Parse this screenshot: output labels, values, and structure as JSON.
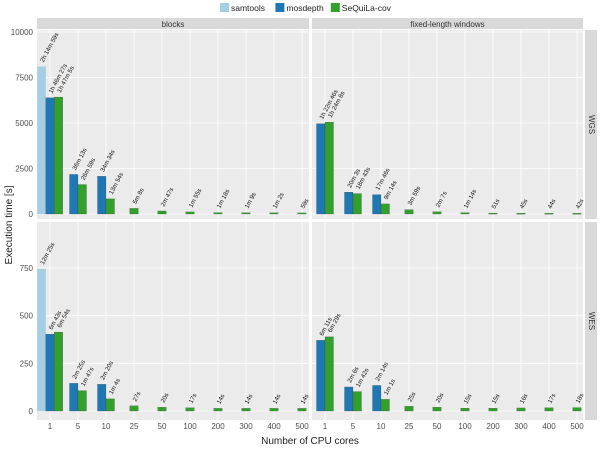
{
  "chart_data": {
    "type": "bar",
    "xlabel": "Number of CPU cores",
    "ylabel": "Execution time [s]",
    "categories": [
      "1",
      "5",
      "10",
      "25",
      "50",
      "100",
      "200",
      "300",
      "400",
      "500"
    ],
    "legend": {
      "position": "top",
      "entries": [
        {
          "name": "samtools",
          "color": "#a6cee3"
        },
        {
          "name": "mosdepth",
          "color": "#1f78b4"
        },
        {
          "name": "SeQuiLa-cov",
          "color": "#33a02c"
        }
      ]
    },
    "grid": true,
    "col_facets": [
      "blocks",
      "fixed-length windows"
    ],
    "row_facets": [
      {
        "name": "WGS",
        "ylim": [
          0,
          10000
        ],
        "yticks": [
          0,
          2500,
          5000,
          7500,
          10000
        ]
      },
      {
        "name": "WES",
        "ylim": [
          0,
          750
        ],
        "yticks": [
          0,
          250,
          500,
          750
        ]
      }
    ],
    "panels": [
      {
        "row": "WGS",
        "col": "blocks",
        "series": [
          {
            "name": "samtools",
            "values": [
              8099,
              null,
              null,
              null,
              null,
              null,
              null,
              null,
              null,
              null
            ],
            "labels": [
              "2h 14m 59s",
              "",
              "",
              "",
              "",
              "",
              "",
              "",
              "",
              ""
            ]
          },
          {
            "name": "mosdepth",
            "values": [
              6387,
              2173,
              2074,
              null,
              null,
              null,
              null,
              null,
              null,
              null
            ],
            "labels": [
              "1h 46m 27s",
              "36m 13s",
              "34m 34s",
              "",
              "",
              "",
              "",
              "",
              "",
              ""
            ]
          },
          {
            "name": "SeQuiLa-cov",
            "values": [
              6425,
              1619,
              834,
              308,
              167,
              115,
              78,
              69,
              62,
              59
            ],
            "labels": [
              "1h 47m 5s",
              "26m 59s",
              "13m 54s",
              "5m 8s",
              "2m 47s",
              "1m 55s",
              "1m 18s",
              "1m 9s",
              "1m 2s",
              "59s"
            ]
          }
        ]
      },
      {
        "row": "WGS",
        "col": "fixed-length windows",
        "series": [
          {
            "name": "mosdepth",
            "values": [
              4966,
              1203,
              1066,
              null,
              null,
              null,
              null,
              null,
              null,
              null
            ],
            "labels": [
              "1h 22m 46s",
              "20m 3s",
              "17m 46s",
              "",
              "",
              "",
              "",
              "",
              "",
              ""
            ]
          },
          {
            "name": "SeQuiLa-cov",
            "values": [
              5048,
              1123,
              554,
              239,
              127,
              74,
              51,
              45,
              44,
              42
            ],
            "labels": [
              "1h 24m 8s",
              "18m 43s",
              "9m 14s",
              "3m 59s",
              "2m 7s",
              "1m 14s",
              "51s",
              "45s",
              "44s",
              "42s"
            ]
          }
        ]
      },
      {
        "row": "WES",
        "col": "blocks",
        "series": [
          {
            "name": "samtools",
            "values": [
              745,
              null,
              null,
              null,
              null,
              null,
              null,
              null,
              null,
              null
            ],
            "labels": [
              "12m 25s",
              "",
              "",
              "",
              "",
              "",
              "",
              "",
              "",
              ""
            ]
          },
          {
            "name": "mosdepth",
            "values": [
              403,
              145,
              140,
              null,
              null,
              null,
              null,
              null,
              null,
              null
            ],
            "labels": [
              "6m 43s",
              "2m 25s",
              "2m 20s",
              "",
              "",
              "",
              "",
              "",
              "",
              ""
            ]
          },
          {
            "name": "SeQuiLa-cov",
            "values": [
              414,
              107,
              64,
              27,
              20,
              17,
              14,
              14,
              14,
              14
            ],
            "labels": [
              "6m 54s",
              "1m 47s",
              "1m 4s",
              "27s",
              "20s",
              "17s",
              "14s",
              "14s",
              "14s",
              "14s"
            ]
          }
        ]
      },
      {
        "row": "WES",
        "col": "fixed-length windows",
        "series": [
          {
            "name": "mosdepth",
            "values": [
              371,
              126,
              134,
              null,
              null,
              null,
              null,
              null,
              null,
              null
            ],
            "labels": [
              "6m 11s",
              "2m 6s",
              "2m 14s",
              "",
              "",
              "",
              "",
              "",
              "",
              ""
            ]
          },
          {
            "name": "SeQuiLa-cov",
            "values": [
              389,
              102,
              61,
              25,
              20,
              15,
              15,
              16,
              17,
              18
            ],
            "labels": [
              "6m 29s",
              "1m 42s",
              "1m 1s",
              "25s",
              "20s",
              "15s",
              "15s",
              "16s",
              "17s",
              "18s"
            ]
          }
        ]
      }
    ]
  }
}
